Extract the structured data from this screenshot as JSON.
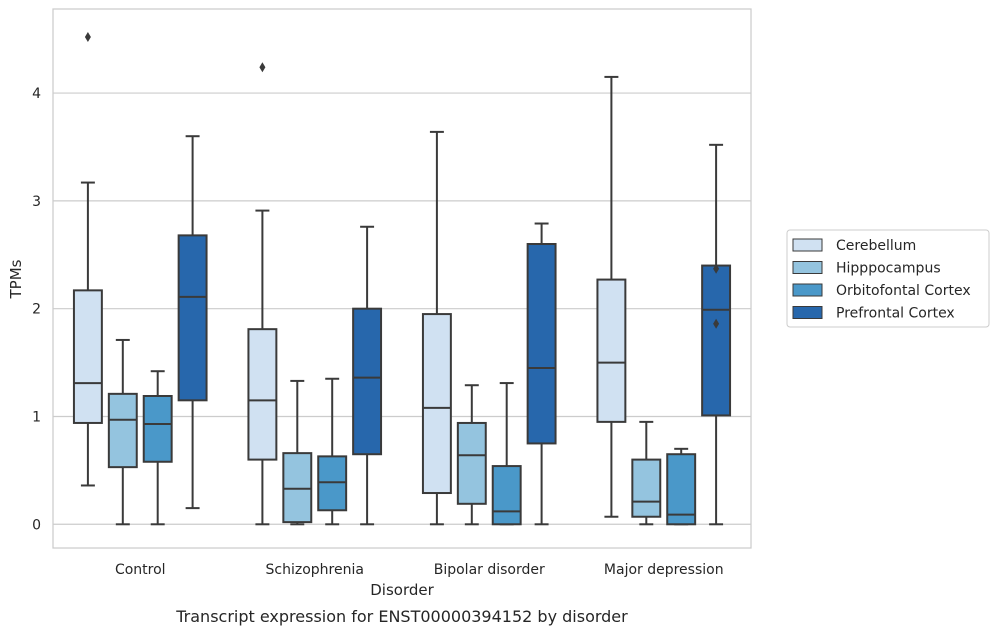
{
  "chart_data": {
    "type": "box",
    "xlabel": "Disorder",
    "ylabel": "TPMs",
    "caption": "Transcript expression for ENST00000394152 by disorder",
    "ylim": [
      -0.22,
      4.78
    ],
    "yticks": [
      0,
      1,
      2,
      3,
      4
    ],
    "grid": "horizontal",
    "legend_position": "outside-right",
    "categories": [
      "Control",
      "Schizophrenia",
      "Bipolar disorder",
      "Major depression"
    ],
    "series": [
      {
        "name": "Cerebellum",
        "color": "#d0e1f2",
        "boxes": [
          {
            "whisker_low": 0.36,
            "q1": 0.94,
            "median": 1.31,
            "q3": 2.17,
            "whisker_high": 3.17,
            "outliers": [
              4.52
            ]
          },
          {
            "whisker_low": 0.0,
            "q1": 0.6,
            "median": 1.15,
            "q3": 1.81,
            "whisker_high": 2.91,
            "outliers": [
              4.24
            ]
          },
          {
            "whisker_low": 0.0,
            "q1": 0.29,
            "median": 1.08,
            "q3": 1.95,
            "whisker_high": 3.64,
            "outliers": []
          },
          {
            "whisker_low": 0.07,
            "q1": 0.95,
            "median": 1.5,
            "q3": 2.27,
            "whisker_high": 4.15,
            "outliers": []
          }
        ]
      },
      {
        "name": "Hipppocampus",
        "color": "#94c4df",
        "boxes": [
          {
            "whisker_low": 0.0,
            "q1": 0.53,
            "median": 0.97,
            "q3": 1.21,
            "whisker_high": 1.71,
            "outliers": []
          },
          {
            "whisker_low": 0.0,
            "q1": 0.02,
            "median": 0.33,
            "q3": 0.66,
            "whisker_high": 1.33,
            "outliers": []
          },
          {
            "whisker_low": 0.0,
            "q1": 0.19,
            "median": 0.64,
            "q3": 0.94,
            "whisker_high": 1.29,
            "outliers": []
          },
          {
            "whisker_low": 0.0,
            "q1": 0.07,
            "median": 0.21,
            "q3": 0.6,
            "whisker_high": 0.95,
            "outliers": []
          }
        ]
      },
      {
        "name": "Orbitofontal Cortex",
        "color": "#4a98c9",
        "boxes": [
          {
            "whisker_low": 0.0,
            "q1": 0.58,
            "median": 0.93,
            "q3": 1.19,
            "whisker_high": 1.42,
            "outliers": []
          },
          {
            "whisker_low": 0.0,
            "q1": 0.13,
            "median": 0.39,
            "q3": 0.63,
            "whisker_high": 1.35,
            "outliers": []
          },
          {
            "whisker_low": 0.0,
            "q1": 0.0,
            "median": 0.12,
            "q3": 0.54,
            "whisker_high": 1.31,
            "outliers": []
          },
          {
            "whisker_low": 0.0,
            "q1": 0.0,
            "median": 0.09,
            "q3": 0.65,
            "whisker_high": 0.7,
            "outliers": []
          }
        ]
      },
      {
        "name": "Prefrontal Cortex",
        "color": "#2767ac",
        "boxes": [
          {
            "whisker_low": 0.15,
            "q1": 1.15,
            "median": 2.11,
            "q3": 2.68,
            "whisker_high": 3.6,
            "outliers": []
          },
          {
            "whisker_low": 0.0,
            "q1": 0.65,
            "median": 1.36,
            "q3": 2.0,
            "whisker_high": 2.76,
            "outliers": []
          },
          {
            "whisker_low": 0.0,
            "q1": 0.75,
            "median": 1.45,
            "q3": 2.6,
            "whisker_high": 2.79,
            "outliers": []
          },
          {
            "whisker_low": 0.0,
            "q1": 1.01,
            "median": 1.99,
            "q3": 2.4,
            "whisker_high": 3.52,
            "outliers": [
              2.37,
              1.86
            ]
          }
        ]
      }
    ]
  }
}
